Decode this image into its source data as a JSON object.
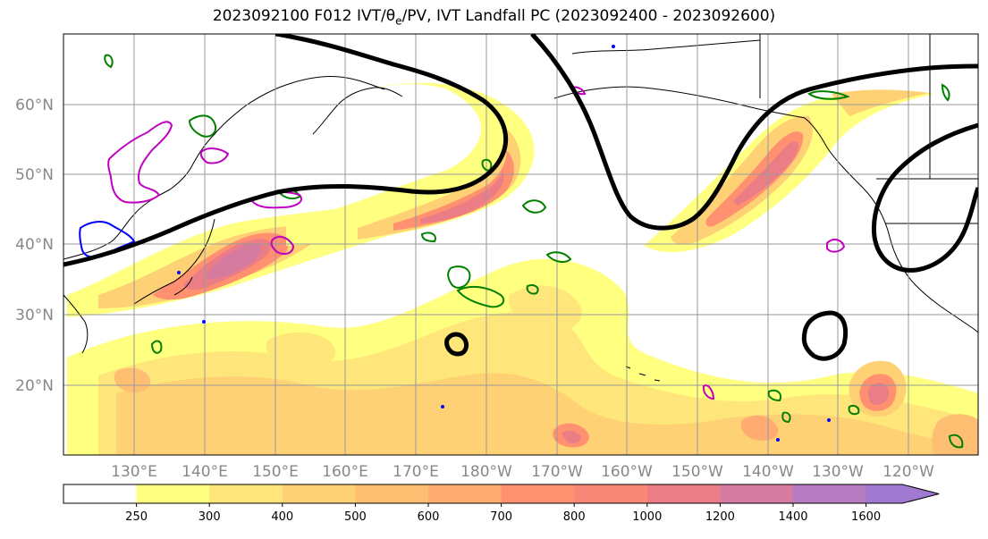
{
  "title": "2023092100 F012 IVT/θe/PV, IVT Landfall PC (2023092400 - 2023092600)",
  "title_parts": {
    "prefix": "2023092100 F012 IVT/θ",
    "subscript": "e",
    "suffix": "/PV, IVT Landfall PC (2023092400 - 2023092600)"
  },
  "latitude_labels": [
    "60°N",
    "50°N",
    "40°N",
    "30°N",
    "20°N"
  ],
  "longitude_labels": [
    "130°E",
    "140°E",
    "150°E",
    "160°E",
    "170°E",
    "180°W",
    "170°W",
    "160°W",
    "150°W",
    "140°W",
    "130°W",
    "120°W"
  ],
  "colorbar": {
    "ticks": [
      "250",
      "300",
      "400",
      "500",
      "600",
      "700",
      "800",
      "1000",
      "1200",
      "1400",
      "1600"
    ],
    "colors": [
      "#ffffff",
      "#ffff80",
      "#ffe67a",
      "#ffd175",
      "#ffbf73",
      "#ffab72",
      "#ff9070",
      "#f98777",
      "#eb7d86",
      "#d57ba0",
      "#b57cc2",
      "#a07ad0"
    ]
  },
  "colors": {
    "landfall_contour": "#000000",
    "theta_e_contour": "#008000",
    "pv_contour_magenta": "#c000c0",
    "pv_contour_blue": "#0000ff",
    "coastline": "#000000",
    "grid": "#999999"
  }
}
